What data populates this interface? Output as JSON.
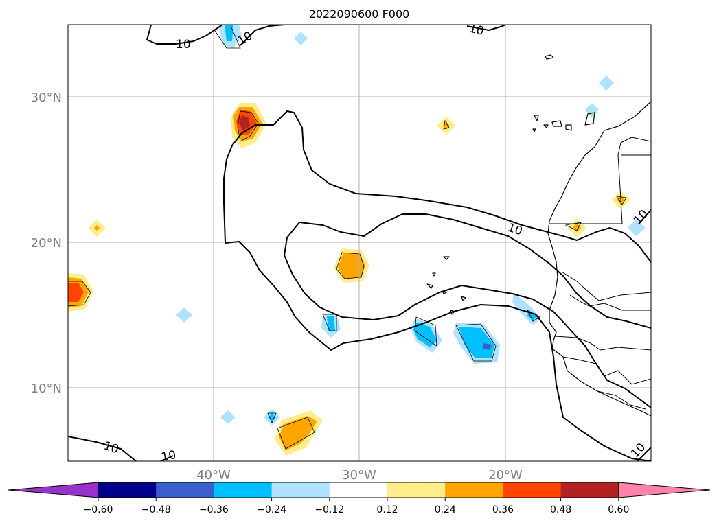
{
  "title": "2022090600 F000",
  "axes": {
    "lat_labels": [
      "30°N",
      "20°N",
      "10°N"
    ],
    "lon_labels": [
      "40°W",
      "30°W",
      "20°W"
    ]
  },
  "contour_labels": [
    "10",
    "10",
    "10",
    "10",
    "10",
    "10",
    "10",
    "10"
  ],
  "colorbar": {
    "ticks": [
      "−0.60",
      "−0.48",
      "−0.36",
      "−0.24",
      "−0.12",
      "0.12",
      "0.24",
      "0.36",
      "0.48",
      "0.60"
    ],
    "colors": [
      "#9932cc",
      "#00008b",
      "#3a5fcd",
      "#00bfff",
      "#b0e2ff",
      "#ffffff",
      "#ffec8b",
      "#ffa500",
      "#ff4500",
      "#b22222",
      "#ff82ab"
    ]
  }
}
